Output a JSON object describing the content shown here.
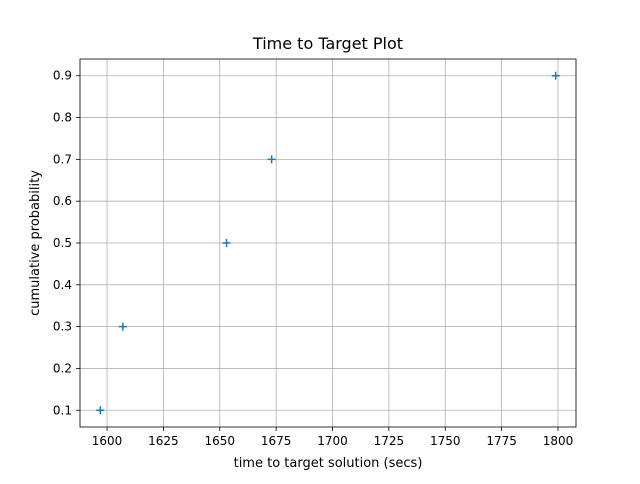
{
  "chart_data": {
    "type": "scatter",
    "title": "Time to Target Plot",
    "xlabel": "time to target solution (secs)",
    "ylabel": "cumulative probability",
    "xlim": [
      1588,
      1808
    ],
    "ylim": [
      0.06,
      0.94
    ],
    "xticks": [
      1600,
      1625,
      1650,
      1675,
      1700,
      1725,
      1750,
      1775,
      1800
    ],
    "yticks": [
      0.1,
      0.2,
      0.3,
      0.4,
      0.5,
      0.6,
      0.7,
      0.8,
      0.9
    ],
    "grid": true,
    "marker": "+",
    "series": [
      {
        "x": [
          1597,
          1607,
          1653,
          1673,
          1799
        ],
        "y": [
          0.1,
          0.3,
          0.5,
          0.7,
          0.9
        ],
        "color": "#1f77b4"
      }
    ]
  }
}
